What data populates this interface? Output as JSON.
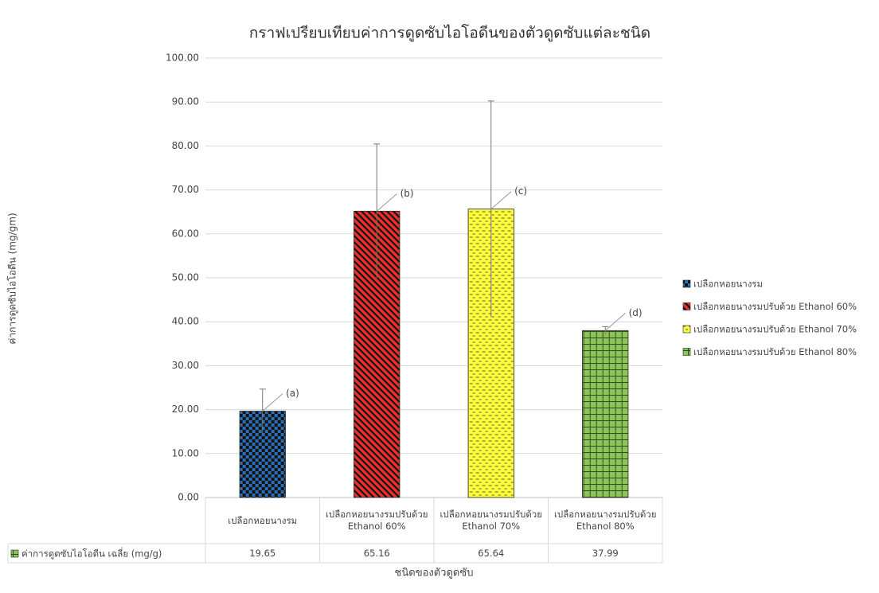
{
  "chart_data": {
    "type": "bar",
    "title": "กราฟเปรียบเทียบค่าการดูดซับไอโอดีนของตัวดูดซับแต่ละชนิด",
    "y_label": "ค่าการดูดซับไอโอดีน (mg/gm)",
    "x_label": "ชนิดของตัวดูดซับ",
    "categories": [
      "เปลือกหอยนางรม",
      "เปลือกหอยนางรมปรับด้วย Ethanol 60%",
      "เปลือกหอยนางรมปรับด้วย Ethanol 70%",
      "เปลือกหอยนางรมปรับด้วย Ethanol 80%"
    ],
    "series": [
      {
        "name": "ค่าการดูดซับไอโอดีน เฉลี่ย (mg/g)",
        "values": [
          19.65,
          65.16,
          65.64,
          37.99
        ],
        "errors": [
          5.0,
          15.3,
          24.6,
          0.9
        ],
        "colors": [
          "#2a72b8",
          "#e8302c",
          "#ffff3a",
          "#8cc45a"
        ]
      }
    ],
    "annotations": [
      "(a)",
      "(b)",
      "(c)",
      "(d)"
    ],
    "ylim": [
      0,
      100
    ],
    "yticks": [
      {
        "value": 0,
        "label": "0.00"
      },
      {
        "value": 10,
        "label": "10.00"
      },
      {
        "value": 20,
        "label": "20.00"
      },
      {
        "value": 30,
        "label": "30.00"
      },
      {
        "value": 40,
        "label": "40.00"
      },
      {
        "value": 50,
        "label": "50.00"
      },
      {
        "value": 60,
        "label": "60.00"
      },
      {
        "value": 70,
        "label": "70.00"
      },
      {
        "value": 80,
        "label": "80.00"
      },
      {
        "value": 90,
        "label": "90.00"
      },
      {
        "value": 100,
        "label": "100.00"
      }
    ],
    "grid": true,
    "legend": "right"
  }
}
